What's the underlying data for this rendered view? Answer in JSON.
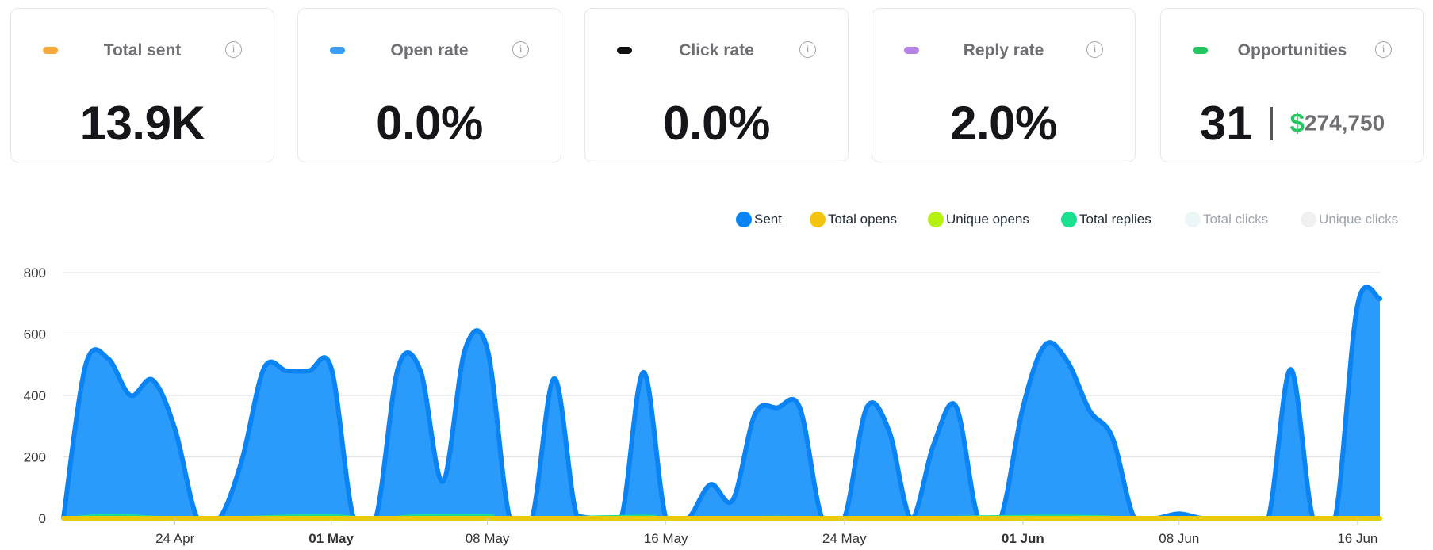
{
  "stats": {
    "total_sent": {
      "title": "Total sent",
      "value": "13.9K",
      "color": "#f5a93a"
    },
    "open_rate": {
      "title": "Open rate",
      "value": "0.0%",
      "color": "#3b9cf5"
    },
    "click_rate": {
      "title": "Click rate",
      "value": "0.0%",
      "color": "#111111"
    },
    "reply_rate": {
      "title": "Reply rate",
      "value": "2.0%",
      "color": "#b582e8"
    },
    "opportunities": {
      "title": "Opportunities",
      "count": "31",
      "currency": "$",
      "amount": "274,750",
      "color": "#22c55e"
    },
    "info_icon": "info-icon",
    "info_glyph": "i"
  },
  "legend": {
    "items": [
      {
        "label": "Sent",
        "color": "#0a84f5",
        "active": true
      },
      {
        "label": "Total opens",
        "color": "#f2c40f",
        "active": true
      },
      {
        "label": "Unique opens",
        "color": "#b6f20f",
        "active": true
      },
      {
        "label": "Total replies",
        "color": "#17e08e",
        "active": true
      },
      {
        "label": "Total clicks",
        "color": "#edf6f6",
        "active": false
      },
      {
        "label": "Unique clicks",
        "color": "#f0f0f0",
        "active": false
      }
    ]
  },
  "chart_data": {
    "type": "area",
    "x_range": [
      "2025-04-19",
      "2025-06-17"
    ],
    "ylim": [
      0,
      800
    ],
    "yticks": [
      0,
      200,
      400,
      600,
      800
    ],
    "xticks": [
      {
        "date": "2025-04-24",
        "label": "24 Apr",
        "bold": false
      },
      {
        "date": "2025-05-01",
        "label": "01 May",
        "bold": true
      },
      {
        "date": "2025-05-08",
        "label": "08 May",
        "bold": false
      },
      {
        "date": "2025-05-16",
        "label": "16 May",
        "bold": false
      },
      {
        "date": "2025-05-24",
        "label": "24 May",
        "bold": false
      },
      {
        "date": "2025-06-01",
        "label": "01 Jun",
        "bold": true
      },
      {
        "date": "2025-06-08",
        "label": "08 Jun",
        "bold": false
      },
      {
        "date": "2025-06-16",
        "label": "16 Jun",
        "bold": false
      }
    ],
    "grid": true,
    "series": [
      {
        "name": "Sent",
        "points": [
          [
            "2025-04-19",
            0
          ],
          [
            "2025-04-20",
            500
          ],
          [
            "2025-04-21",
            520
          ],
          [
            "2025-04-22",
            400
          ],
          [
            "2025-04-23",
            450
          ],
          [
            "2025-04-24",
            290
          ],
          [
            "2025-04-25",
            0
          ],
          [
            "2025-04-26",
            0
          ],
          [
            "2025-04-27",
            190
          ],
          [
            "2025-04-28",
            490
          ],
          [
            "2025-04-29",
            480
          ],
          [
            "2025-04-30",
            480
          ],
          [
            "2025-05-01",
            490
          ],
          [
            "2025-05-02",
            0
          ],
          [
            "2025-05-03",
            0
          ],
          [
            "2025-05-04",
            490
          ],
          [
            "2025-05-05",
            480
          ],
          [
            "2025-05-06",
            120
          ],
          [
            "2025-05-07",
            550
          ],
          [
            "2025-05-08",
            550
          ],
          [
            "2025-05-09",
            0
          ],
          [
            "2025-05-10",
            0
          ],
          [
            "2025-05-11",
            455
          ],
          [
            "2025-05-12",
            10
          ],
          [
            "2025-05-13",
            0
          ],
          [
            "2025-05-14",
            0
          ],
          [
            "2025-05-15",
            475
          ],
          [
            "2025-05-16",
            0
          ],
          [
            "2025-05-17",
            0
          ],
          [
            "2025-05-18",
            110
          ],
          [
            "2025-05-19",
            60
          ],
          [
            "2025-05-20",
            340
          ],
          [
            "2025-05-21",
            360
          ],
          [
            "2025-05-22",
            360
          ],
          [
            "2025-05-23",
            0
          ],
          [
            "2025-05-24",
            0
          ],
          [
            "2025-05-25",
            360
          ],
          [
            "2025-05-26",
            285
          ],
          [
            "2025-05-27",
            0
          ],
          [
            "2025-05-28",
            240
          ],
          [
            "2025-05-29",
            365
          ],
          [
            "2025-05-30",
            0
          ],
          [
            "2025-05-31",
            0
          ],
          [
            "2025-06-01",
            360
          ],
          [
            "2025-06-02",
            565
          ],
          [
            "2025-06-03",
            510
          ],
          [
            "2025-06-04",
            350
          ],
          [
            "2025-06-05",
            265
          ],
          [
            "2025-06-06",
            0
          ],
          [
            "2025-06-07",
            0
          ],
          [
            "2025-06-08",
            15
          ],
          [
            "2025-06-09",
            0
          ],
          [
            "2025-06-10",
            0
          ],
          [
            "2025-06-11",
            0
          ],
          [
            "2025-06-12",
            0
          ],
          [
            "2025-06-13",
            485
          ],
          [
            "2025-06-14",
            0
          ],
          [
            "2025-06-15",
            0
          ],
          [
            "2025-06-16",
            695
          ],
          [
            "2025-06-17",
            715
          ]
        ]
      },
      {
        "name": "Total opens",
        "points": [
          [
            "2025-04-19",
            0
          ],
          [
            "2025-06-17",
            0
          ]
        ]
      },
      {
        "name": "Unique opens",
        "points": [
          [
            "2025-04-19",
            0
          ],
          [
            "2025-06-17",
            0
          ]
        ]
      },
      {
        "name": "Total replies",
        "points": [
          [
            "2025-04-19",
            0
          ],
          [
            "2025-04-21",
            12
          ],
          [
            "2025-04-23",
            5
          ],
          [
            "2025-04-25",
            0
          ],
          [
            "2025-04-29",
            8
          ],
          [
            "2025-05-01",
            10
          ],
          [
            "2025-05-03",
            0
          ],
          [
            "2025-05-05",
            10
          ],
          [
            "2025-05-08",
            10
          ],
          [
            "2025-05-09",
            0
          ],
          [
            "2025-05-15",
            8
          ],
          [
            "2025-05-16",
            0
          ],
          [
            "2025-05-21",
            5
          ],
          [
            "2025-05-23",
            0
          ],
          [
            "2025-06-02",
            8
          ],
          [
            "2025-06-05",
            5
          ],
          [
            "2025-06-06",
            0
          ],
          [
            "2025-06-17",
            0
          ]
        ]
      }
    ]
  }
}
